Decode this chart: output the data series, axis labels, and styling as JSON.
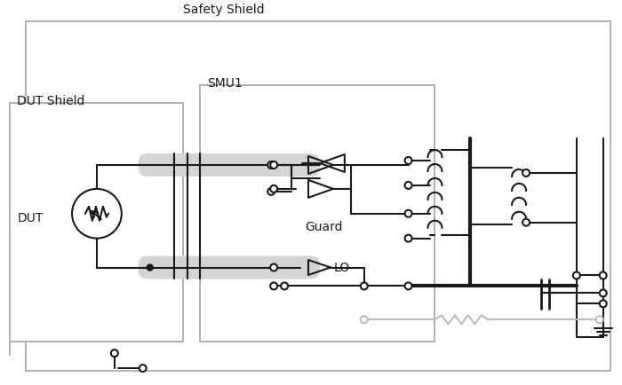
{
  "bg_color": "#ffffff",
  "line_color": "#1a1a1a",
  "gray_color": "#bbbbbb",
  "shield_gray": "#d4d4d4",
  "box_gray": "#aaaaaa",
  "fig_width": 7.0,
  "fig_height": 4.34,
  "dpi": 100,
  "labels": {
    "safety_shield": "Safety Shield",
    "smu1": "SMU1",
    "dut_shield": "DUT Shield",
    "dut": "DUT",
    "guard": "Guard",
    "lo": "LO"
  },
  "font_size": 10
}
